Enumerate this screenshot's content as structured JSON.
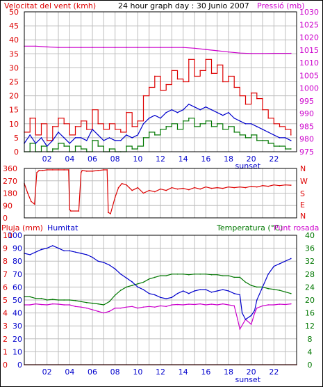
{
  "header": {
    "left_label": "Velocitat del vent (kmh)",
    "title": "24 hour graph day : 30 Junio 2007",
    "right_label": "Pressió (mb)"
  },
  "colors": {
    "red": "#dd0000",
    "magenta": "#cc00cc",
    "blue": "#0000cc",
    "green": "#007700",
    "grid": "#bdbdbd",
    "frame": "#000000",
    "background": "#ffffff"
  },
  "x_ticks": [
    "02",
    "04",
    "06",
    "08",
    "10",
    "12",
    "14",
    "16",
    "18",
    "20",
    "22"
  ],
  "sunset_label": "sunset",
  "chart_data": [
    {
      "type": "line",
      "name": "wind-pressure",
      "xlim": [
        0,
        24
      ],
      "ylim_left": [
        0,
        50
      ],
      "ylim_right": [
        975,
        1030
      ],
      "yticks_left": [
        "0",
        "5",
        "10",
        "15",
        "20",
        "25",
        "30",
        "35",
        "40",
        "45",
        "50"
      ],
      "yticks_right": [
        "975",
        "980",
        "985",
        "990",
        "995",
        "1000",
        "1005",
        "1010",
        "1015",
        "1020",
        "1025",
        "1030"
      ],
      "ylabel_left": "Velocitat del vent (kmh)",
      "ylabel_right": "Pressió (mb)",
      "pressure": {
        "x": [
          0,
          1,
          2,
          3,
          4,
          5,
          6,
          7,
          8,
          9,
          10,
          11,
          12,
          13,
          14,
          15,
          16,
          17,
          18,
          19,
          20,
          21,
          22,
          23.5
        ],
        "y": [
          1016.5,
          1016.5,
          1016.2,
          1016,
          1016,
          1016,
          1016,
          1016,
          1016,
          1016,
          1016,
          1016,
          1016,
          1016,
          1016,
          1015.7,
          1015.2,
          1014.7,
          1014.2,
          1013.8,
          1013.6,
          1013.6,
          1013.7,
          1013.7
        ]
      },
      "gusts": {
        "x": [
          0,
          0.5,
          1,
          1.5,
          2,
          2.5,
          3,
          3.5,
          4,
          4.5,
          5,
          5.5,
          6,
          6.5,
          7,
          7.5,
          8,
          8.5,
          9,
          9.5,
          10,
          10.5,
          11,
          11.5,
          12,
          12.5,
          13,
          13.5,
          14,
          14.5,
          15,
          15.5,
          16,
          16.5,
          17,
          17.5,
          18,
          18.5,
          19,
          19.5,
          20,
          20.5,
          21,
          21.5,
          22,
          22.5,
          23,
          23.5
        ],
        "y": [
          7,
          12,
          6,
          10,
          4,
          9,
          12,
          10,
          6,
          9,
          11,
          8,
          15,
          10,
          8,
          10,
          8,
          7,
          14,
          9,
          11,
          20,
          23,
          27,
          22,
          24,
          29,
          26,
          25,
          33,
          27,
          29,
          33,
          28,
          31,
          25,
          27,
          23,
          20,
          17,
          21,
          19,
          15,
          12,
          10,
          9,
          8,
          6
        ]
      },
      "average": {
        "x": [
          0,
          0.5,
          1,
          1.5,
          2,
          2.5,
          3,
          3.5,
          4,
          4.5,
          5,
          5.5,
          6,
          6.5,
          7,
          7.5,
          8,
          8.5,
          9,
          9.5,
          10,
          10.5,
          11,
          11.5,
          12,
          12.5,
          13,
          13.5,
          14,
          14.5,
          15,
          15.5,
          16,
          16.5,
          17,
          17.5,
          18,
          18.5,
          19,
          19.5,
          20,
          20.5,
          21,
          21.5,
          22,
          22.5,
          23,
          23.5
        ],
        "y": [
          3,
          6,
          3,
          5,
          2,
          4,
          7,
          5,
          3,
          5,
          5,
          4,
          8,
          6,
          4,
          5,
          4,
          4,
          6,
          5,
          6,
          10,
          12,
          13,
          12,
          14,
          15,
          14,
          15,
          17,
          16,
          15,
          16,
          15,
          14,
          13,
          14,
          12,
          11,
          10,
          10,
          9,
          8,
          7,
          6,
          5,
          5,
          4
        ]
      },
      "minimum": {
        "x": [
          0,
          0.5,
          1,
          1.5,
          2,
          2.5,
          3,
          3.5,
          4,
          4.5,
          5,
          5.5,
          6,
          6.5,
          7,
          7.5,
          8,
          8.5,
          9,
          9.5,
          10,
          10.5,
          11,
          11.5,
          12,
          12.5,
          13,
          13.5,
          14,
          14.5,
          15,
          15.5,
          16,
          16.5,
          17,
          17.5,
          18,
          18.5,
          19,
          19.5,
          20,
          20.5,
          21,
          21.5,
          22,
          22.5,
          23,
          23.5
        ],
        "y": [
          0,
          3,
          0,
          2,
          0,
          1,
          3,
          2,
          0,
          2,
          1,
          0,
          4,
          2,
          0,
          1,
          0,
          0,
          2,
          1,
          2,
          5,
          7,
          6,
          8,
          9,
          10,
          8,
          11,
          12,
          9,
          10,
          11,
          9,
          10,
          8,
          9,
          7,
          6,
          5,
          6,
          4,
          4,
          3,
          2,
          2,
          1,
          1
        ]
      }
    },
    {
      "type": "line",
      "name": "wind-direction",
      "xlim": [
        0,
        24
      ],
      "ylim": [
        0,
        360
      ],
      "yticks": [
        "0",
        "90",
        "180",
        "270",
        "360"
      ],
      "compass": [
        "N",
        "W",
        "S",
        "E",
        "N"
      ],
      "x": [
        0,
        0.3,
        0.6,
        0.9,
        1.1,
        1.3,
        1.6,
        2,
        2.5,
        3,
        3.5,
        3.9,
        4,
        4.1,
        4.8,
        5,
        5.1,
        5.5,
        6,
        6.5,
        7,
        7.3,
        7.4,
        7.6,
        8,
        8.3,
        8.6,
        9,
        9.5,
        10,
        10.5,
        11,
        11.5,
        12,
        12.5,
        13,
        13.5,
        14,
        14.5,
        15,
        15.5,
        16,
        16.5,
        17,
        17.5,
        18,
        18.5,
        19,
        19.5,
        20,
        20.5,
        21,
        21.5,
        22,
        22.5,
        23,
        23.5
      ],
      "y": [
        250,
        180,
        120,
        100,
        330,
        345,
        345,
        350,
        350,
        350,
        350,
        350,
        60,
        50,
        50,
        330,
        345,
        340,
        340,
        345,
        350,
        350,
        40,
        30,
        150,
        220,
        250,
        240,
        200,
        220,
        180,
        200,
        190,
        210,
        200,
        220,
        210,
        215,
        205,
        220,
        210,
        225,
        215,
        220,
        215,
        225,
        220,
        225,
        220,
        230,
        225,
        235,
        230,
        240,
        235,
        240,
        238
      ]
    },
    {
      "type": "line",
      "name": "temperature-humidity",
      "xlim": [
        0,
        24
      ],
      "ylim_left_rain": [
        0,
        100
      ],
      "ylim_left_humidity": [
        0,
        100
      ],
      "ylim_right": [
        0,
        40
      ],
      "yticks_rain": [
        "0",
        "1",
        "2",
        "3",
        "4",
        "5",
        "6",
        "7",
        "8",
        "9",
        "10"
      ],
      "yticks_humidity": [
        "0",
        "10",
        "20",
        "30",
        "40",
        "50",
        "60",
        "70",
        "80",
        "90",
        "100"
      ],
      "yticks_right": [
        "0",
        "4",
        "8",
        "12",
        "16",
        "20",
        "24",
        "28",
        "32",
        "36",
        "40"
      ],
      "labels": {
        "rain": "Pluja (mm)",
        "humidity": "Humitat",
        "temperature": "Temperatura (°C)",
        "dewpoint": "Punt rosada"
      },
      "humidity": {
        "x": [
          0,
          0.5,
          1,
          1.5,
          2,
          2.5,
          3,
          3.5,
          4,
          4.5,
          5,
          5.5,
          6,
          6.5,
          7,
          7.5,
          8,
          8.5,
          9,
          9.5,
          10,
          10.5,
          11,
          11.5,
          12,
          12.5,
          13,
          13.5,
          14,
          14.5,
          15,
          15.5,
          16,
          16.5,
          17,
          17.5,
          18,
          18.5,
          19,
          19.2,
          19.5,
          20,
          20.3,
          20.5,
          21,
          21.5,
          22,
          22.5,
          23,
          23.5
        ],
        "y": [
          86,
          85,
          87,
          89,
          90,
          92,
          90,
          88,
          88,
          87,
          86,
          85,
          83,
          80,
          79,
          77,
          74,
          70,
          67,
          64,
          60,
          58,
          55,
          54,
          52,
          51,
          52,
          55,
          57,
          55,
          57,
          58,
          58,
          56,
          57,
          58,
          57,
          55,
          54,
          40,
          35,
          38,
          42,
          50,
          60,
          70,
          76,
          78,
          80,
          82
        ]
      },
      "temperature": {
        "x": [
          0,
          0.5,
          1,
          1.5,
          2,
          2.5,
          3,
          3.5,
          4,
          4.5,
          5,
          5.5,
          6,
          6.5,
          7,
          7.5,
          8,
          8.5,
          9,
          9.5,
          10,
          10.5,
          11,
          11.5,
          12,
          12.5,
          13,
          13.5,
          14,
          14.5,
          15,
          15.5,
          16,
          16.5,
          17,
          17.5,
          18,
          18.5,
          19,
          19.5,
          20,
          20.5,
          21,
          21.5,
          22,
          22.5,
          23,
          23.5
        ],
        "y": [
          21,
          21,
          20.5,
          20.5,
          20,
          20.2,
          20,
          20,
          20,
          19.8,
          19.5,
          19.2,
          19,
          18.8,
          18.5,
          19.5,
          21.5,
          23,
          24,
          24.5,
          25,
          25.5,
          26.5,
          27,
          27.5,
          27.5,
          28,
          28,
          28,
          27.8,
          28,
          28,
          28,
          27.8,
          27.8,
          27.5,
          27.5,
          27,
          27,
          25.5,
          24.5,
          24,
          24,
          23.5,
          23.3,
          23,
          22.5,
          22
        ]
      },
      "dewpoint": {
        "x": [
          0,
          0.5,
          1,
          1.5,
          2,
          2.5,
          3,
          3.5,
          4,
          4.5,
          5,
          5.5,
          6,
          6.5,
          7,
          7.5,
          8,
          8.5,
          9,
          9.5,
          10,
          10.5,
          11,
          11.5,
          12,
          12.5,
          13,
          13.5,
          14,
          14.5,
          15,
          15.5,
          16,
          16.5,
          17,
          17.5,
          18,
          18.5,
          18.8,
          19,
          19.5,
          20,
          20.3,
          20.5,
          21,
          21.5,
          22,
          22.5,
          23,
          23.5
        ],
        "y": [
          18.5,
          18.5,
          18.8,
          18.6,
          18.5,
          18.8,
          18.7,
          18.5,
          18.5,
          18,
          17.8,
          17.5,
          17,
          16.5,
          16,
          16.5,
          17.5,
          17.5,
          17.8,
          18,
          17.5,
          17.8,
          18,
          17.8,
          18.2,
          18,
          18.5,
          18.6,
          18.5,
          18.7,
          18.6,
          18.8,
          18.5,
          18.7,
          18.5,
          18.8,
          18.5,
          18.2,
          14,
          11,
          14,
          12.5,
          16,
          17.5,
          18.2,
          18.5,
          18.5,
          18.7,
          18.6,
          18.8
        ]
      },
      "rain": {
        "x": [
          0,
          24
        ],
        "y": [
          0,
          0
        ]
      }
    }
  ]
}
